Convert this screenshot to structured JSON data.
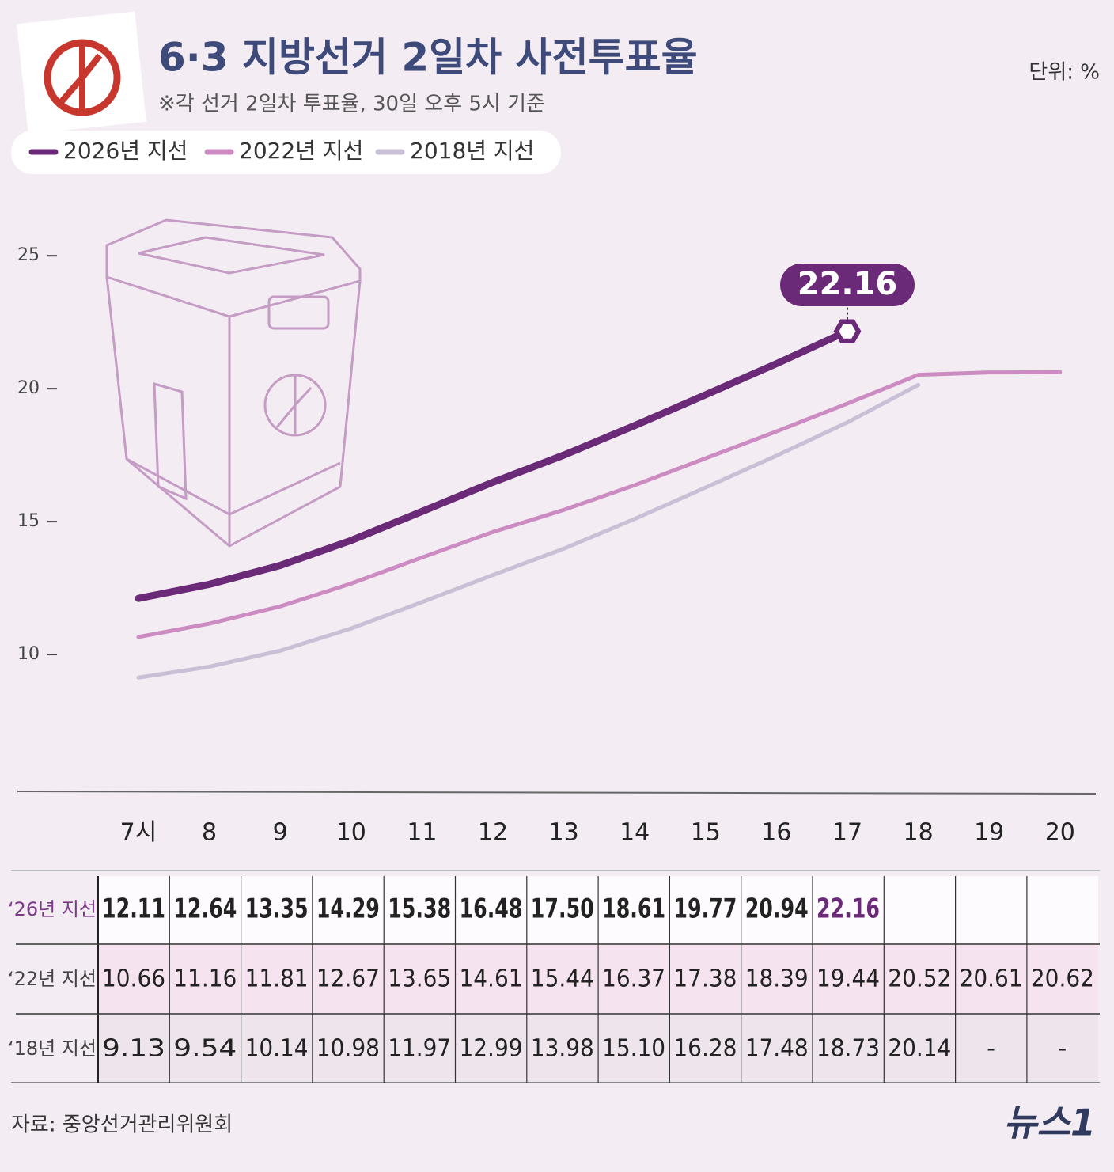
{
  "chart_data": {
    "type": "line",
    "title": "6·3 지방선거 2일차 사전투표율",
    "subtitle": "※각 선거 2일차 투표율, 30일 오후 5시 기준",
    "unit": "단위: %",
    "categories": [
      "7시",
      "8",
      "9",
      "10",
      "11",
      "12",
      "13",
      "14",
      "15",
      "16",
      "17",
      "18",
      "19",
      "20"
    ],
    "series": [
      {
        "name": "2026년 지선",
        "color": "#6b2a78",
        "values": [
          12.11,
          12.64,
          13.35,
          14.29,
          15.38,
          16.48,
          17.5,
          18.61,
          19.77,
          20.94,
          22.16,
          null,
          null,
          null
        ],
        "value_labels": [
          "12.11",
          "12.64",
          "13.35",
          "14.29",
          "15.38",
          "16.48",
          "17.50",
          "18.61",
          "19.77",
          "20.94",
          "22.16",
          null,
          null,
          null
        ]
      },
      {
        "name": "2022년 지선",
        "color": "#cc8cc2",
        "values": [
          10.66,
          11.16,
          11.81,
          12.67,
          13.65,
          14.61,
          15.44,
          16.37,
          17.38,
          18.39,
          19.44,
          20.52,
          20.61,
          20.62
        ],
        "value_labels": [
          "10.66",
          "11.16",
          "11.81",
          "12.67",
          "13.65",
          "14.61",
          "15.44",
          "16.37",
          "17.38",
          "18.39",
          "19.44",
          "20.52",
          "20.61",
          "20.62"
        ]
      },
      {
        "name": "2018년 지선",
        "color": "#c9c0d6",
        "values": [
          9.13,
          9.54,
          10.14,
          10.98,
          11.97,
          12.99,
          13.98,
          15.1,
          16.28,
          17.48,
          18.73,
          20.14,
          null,
          null
        ],
        "value_labels": [
          "9.13",
          "9.54",
          "10.14",
          "10.98",
          "11.97",
          "12.99",
          "13.98",
          "15.10",
          "16.28",
          "17.48",
          "18.73",
          "20.14",
          "-",
          "-"
        ]
      }
    ],
    "table_row_labels": [
      "‘26년 지선",
      "‘22년 지선",
      "‘18년 지선"
    ],
    "ylim": [
      5,
      27
    ],
    "yticks": [
      10,
      15,
      20,
      25
    ],
    "source": "자료: 중앙선거관리위원회",
    "logo": "뉴스1"
  }
}
